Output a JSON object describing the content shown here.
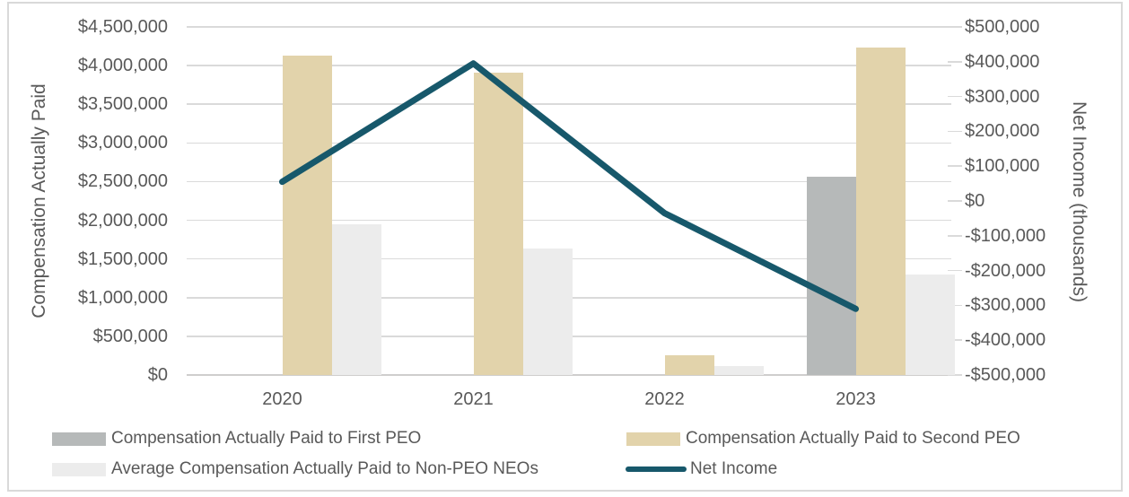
{
  "chart_data": {
    "type": "combo-bar-line",
    "title": "",
    "categories": [
      "2020",
      "2021",
      "2022",
      "2023"
    ],
    "series": [
      {
        "name": "Compensation Actually Paid to First PEO",
        "chart_type": "bar",
        "axis": "left",
        "color": "#b6b9b9",
        "values": [
          null,
          null,
          null,
          2560000
        ]
      },
      {
        "name": "Compensation Actually Paid to Second PEO",
        "chart_type": "bar",
        "axis": "left",
        "color": "#e2d3ab",
        "values": [
          4130000,
          3910000,
          250000,
          4230000
        ]
      },
      {
        "name": "Average Compensation Actually Paid to Non-PEO NEOs",
        "chart_type": "bar",
        "axis": "left",
        "color": "#ececec",
        "values": [
          1950000,
          1640000,
          120000,
          1300000
        ]
      },
      {
        "name": "Net Income",
        "chart_type": "line",
        "axis": "right",
        "color": "#17586b",
        "values": [
          55000,
          395000,
          -35000,
          -310000
        ]
      }
    ],
    "left_axis": {
      "title": "Compensation Actually Paid",
      "min": 0,
      "max": 4500000,
      "step": 500000,
      "tick_labels": [
        "$4,500,000",
        "$4,000,000",
        "$3,500,000",
        "$3,000,000",
        "$2,500,000",
        "$2,000,000",
        "$1,500,000",
        "$1,000,000",
        "$500,000",
        "$0"
      ]
    },
    "right_axis": {
      "title": "Net Income (thousands)",
      "min": -500000,
      "max": 500000,
      "step": 100000,
      "tick_labels": [
        "$500,000",
        "$400,000",
        "$300,000",
        "$200,000",
        "$100,000",
        "$0",
        "-$100,000",
        "-$200,000",
        "-$300,000",
        "-$400,000",
        "-$500,000"
      ]
    },
    "legend": {
      "position": "bottom",
      "entries": [
        "Compensation Actually Paid to First PEO",
        "Compensation Actually Paid to Second PEO",
        "Average Compensation Actually Paid to Non-PEO NEOs",
        "Net Income"
      ]
    },
    "grid": true,
    "colors": {
      "gridline": "#dadada",
      "axis_line": "#cfcecd",
      "text": "#595959",
      "border": "#d9d9d9"
    }
  }
}
